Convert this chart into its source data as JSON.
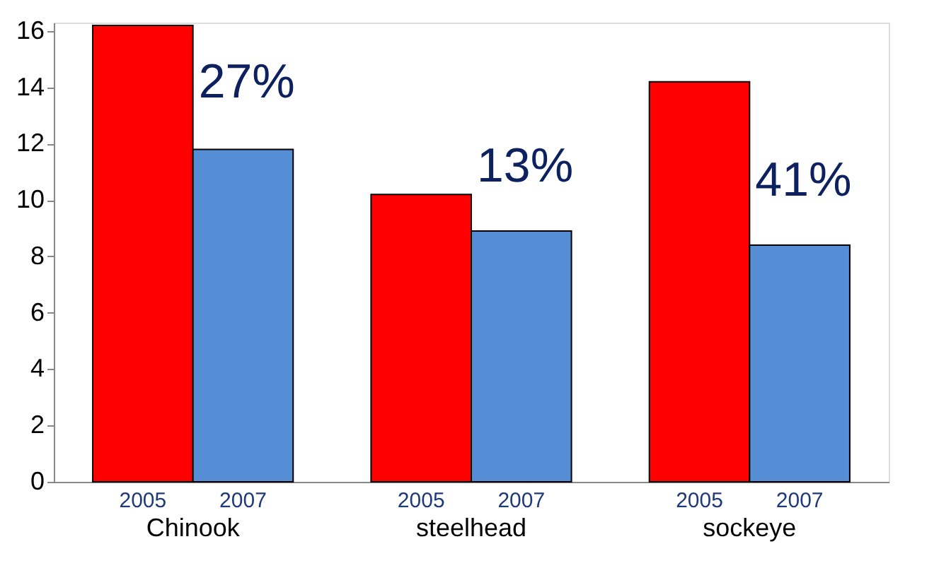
{
  "chart_data": {
    "type": "bar",
    "categories": [
      "Chinook",
      "steelhead",
      "sockeye"
    ],
    "series": [
      {
        "name": "2005",
        "color": "#ff0000",
        "values": [
          16.2,
          10.2,
          14.2
        ]
      },
      {
        "name": "2007",
        "color": "#558ed5",
        "values": [
          11.8,
          8.9,
          8.4
        ]
      }
    ],
    "ylim": [
      0,
      16.3
    ],
    "yticks": [
      0,
      2,
      4,
      6,
      8,
      10,
      12,
      14,
      16
    ],
    "grid": false,
    "legend": false,
    "annotations": [
      {
        "text": "27%",
        "x": "Chinook",
        "y": 13.3
      },
      {
        "text": "13%",
        "x": "steelhead",
        "y": 10.3
      },
      {
        "text": "41%",
        "x": "sockeye",
        "y": 9.8
      }
    ]
  }
}
